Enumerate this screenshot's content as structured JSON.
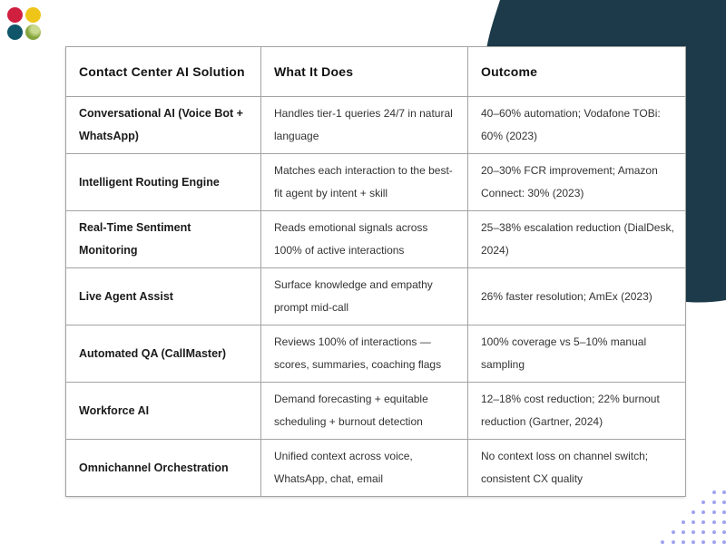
{
  "decor": {
    "blob_color": "#1c3a49",
    "dot_grid_color": "#9fa3f0",
    "logo_dots": [
      {
        "name": "red-dot",
        "color": "#d01f3f"
      },
      {
        "name": "yellow-dot",
        "color": "#f0c51a"
      },
      {
        "name": "teal-dot",
        "color": "#0f566b"
      },
      {
        "name": "green-dot",
        "color": "#84a43c",
        "highlight": "#c9d98f"
      }
    ]
  },
  "table": {
    "headers": [
      "Contact Center AI Solution",
      "What It Does",
      "Outcome"
    ],
    "rows": [
      {
        "solution": "Conversational AI (Voice Bot + WhatsApp)",
        "what": "Handles tier-1 queries 24/7 in natural language",
        "outcome": "40–60% automation; Vodafone TOBi: 60% (2023)"
      },
      {
        "solution": "Intelligent Routing Engine",
        "what": "Matches each interaction to the best-fit agent by intent + skill",
        "outcome": "20–30% FCR improvement; Amazon Connect: 30% (2023)"
      },
      {
        "solution": "Real-Time Sentiment Monitoring",
        "what": "Reads emotional signals across 100% of active interactions",
        "outcome": "25–38% escalation reduction (DialDesk, 2024)"
      },
      {
        "solution": "Live Agent Assist",
        "what": "Surface knowledge and empathy prompt mid-call",
        "outcome": "26% faster resolution; AmEx (2023)"
      },
      {
        "solution": "Automated QA (CallMaster)",
        "what": "Reviews 100% of interactions — scores, summaries, coaching flags",
        "outcome": "100% coverage vs 5–10% manual sampling"
      },
      {
        "solution": "Workforce AI",
        "what": "Demand forecasting + equitable scheduling + burnout detection",
        "outcome": "12–18% cost reduction; 22% burnout reduction (Gartner, 2024)"
      },
      {
        "solution": "Omnichannel Orchestration",
        "what": "Unified context across voice, WhatsApp, chat, email",
        "outcome": "No context loss on channel switch; consistent CX quality"
      }
    ]
  }
}
